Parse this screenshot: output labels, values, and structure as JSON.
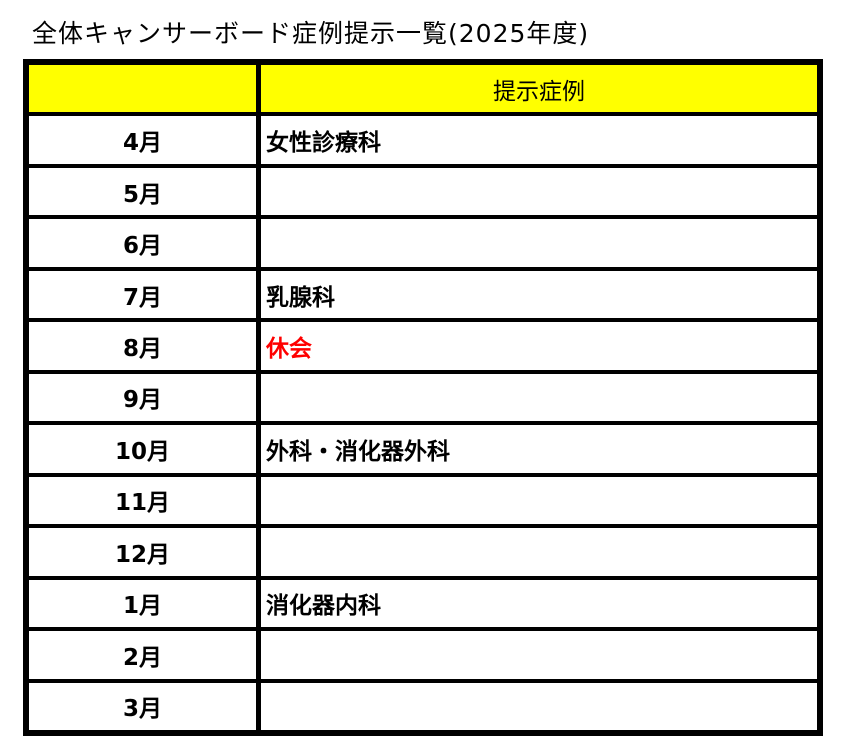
{
  "title": "全体キャンサーボード症例提示一覧(2025年度)",
  "table": {
    "headers": [
      "",
      "提示症例"
    ],
    "header_color": "#FFFF00",
    "rows": [
      {
        "month": "4月",
        "case": "女性診療科"
      },
      {
        "month": "5月",
        "case": ""
      },
      {
        "month": "6月",
        "case": ""
      },
      {
        "month": "7月",
        "case": "乳腺科"
      },
      {
        "month": "8月",
        "case": "休会",
        "case_color": "#FF0000"
      },
      {
        "month": "9月",
        "case": ""
      },
      {
        "month": "10月",
        "case": "外科・消化器外科"
      },
      {
        "month": "11月",
        "case": ""
      },
      {
        "month": "12月",
        "case": ""
      },
      {
        "month": "1月",
        "case": "消化器内科"
      },
      {
        "month": "2月",
        "case": ""
      },
      {
        "month": "3月",
        "case": ""
      }
    ]
  }
}
